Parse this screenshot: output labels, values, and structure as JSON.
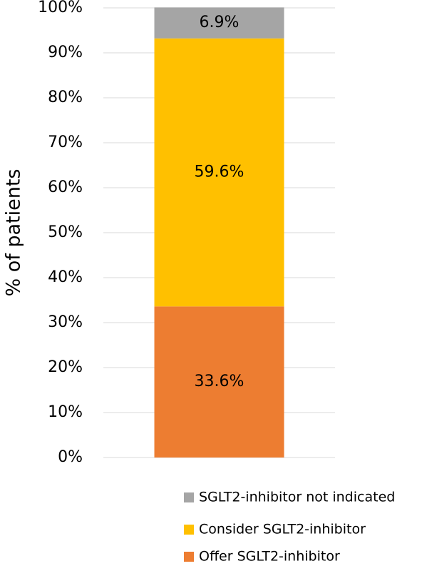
{
  "chart_data": {
    "type": "stacked_bar",
    "y_label": "% of patients",
    "categories": [
      null
    ],
    "series": [
      {
        "name": "Offer SGLT2-inhibitor",
        "color": "#ed7d31",
        "values": [
          33.6
        ],
        "value_labels": [
          "33.6%"
        ]
      },
      {
        "name": "Consider SGLT2-inhibitor",
        "color": "#ffc000",
        "values": [
          59.6
        ],
        "value_labels": [
          "59.6%"
        ]
      },
      {
        "name": "SGLT2-inhibitor not indicated",
        "color": "#a5a5a5",
        "values": [
          6.9
        ],
        "value_labels": [
          "6.9%"
        ]
      }
    ],
    "ylim": [
      0,
      100
    ],
    "yticks": [
      {
        "value": 0,
        "label": "0%"
      },
      {
        "value": 10,
        "label": "10%"
      },
      {
        "value": 20,
        "label": "20%"
      },
      {
        "value": 30,
        "label": "30%"
      },
      {
        "value": 40,
        "label": "40%"
      },
      {
        "value": 50,
        "label": "50%"
      },
      {
        "value": 60,
        "label": "60%"
      },
      {
        "value": 70,
        "label": "70%"
      },
      {
        "value": 80,
        "label": "80%"
      },
      {
        "value": 90,
        "label": "90%"
      },
      {
        "value": 100,
        "label": "100%"
      }
    ],
    "grid": true,
    "legend": "bottom"
  }
}
